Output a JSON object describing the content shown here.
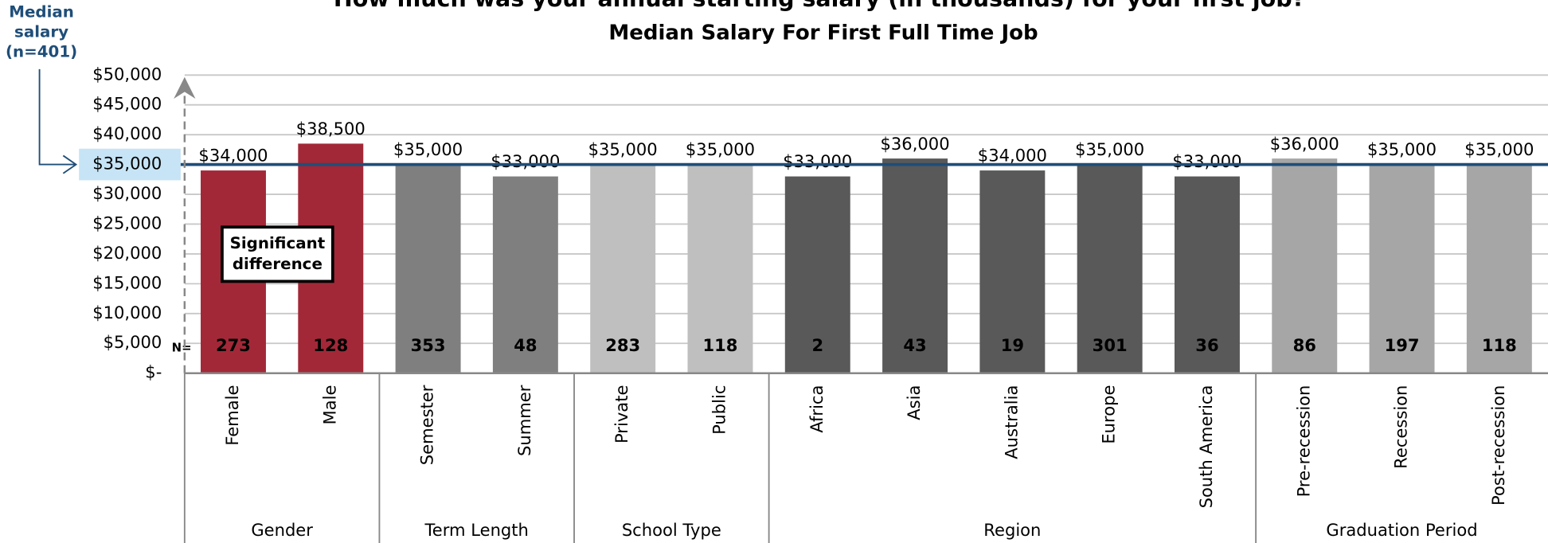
{
  "chart_data": {
    "type": "bar",
    "title": "How much was your annual starting salary (in thousands) for your first job?",
    "subtitle": "Median Salary For First Full Time Job",
    "categories": [
      "Female",
      "Male",
      "Semester",
      "Summer",
      "Private",
      "Public",
      "Africa",
      "Asia",
      "Australia",
      "Europe",
      "South America",
      "Pre-recession",
      "Recession",
      "Post-recession"
    ],
    "values": [
      34000,
      38500,
      35000,
      33000,
      35000,
      35000,
      33000,
      36000,
      34000,
      35000,
      33000,
      36000,
      35000,
      35000
    ],
    "value_labels": [
      "$34,000",
      "$38,500",
      "$35,000",
      "$33,000",
      "$35,000",
      "$35,000",
      "$33,000",
      "$36,000",
      "$34,000",
      "$35,000",
      "$33,000",
      "$36,000",
      "$35,000",
      "$35,000"
    ],
    "colors": [
      "#a22838",
      "#a22838",
      "#7f7f7f",
      "#7f7f7f",
      "#bfbfbf",
      "#bfbfbf",
      "#595959",
      "#595959",
      "#595959",
      "#595959",
      "#595959",
      "#a6a6a6",
      "#a6a6a6",
      "#a6a6a6"
    ],
    "n_label": "N=",
    "n": [
      273,
      128,
      353,
      48,
      283,
      118,
      2,
      43,
      19,
      301,
      36,
      86,
      197,
      118
    ],
    "groups": [
      {
        "name": "Gender",
        "size": 2
      },
      {
        "name": "Term Length",
        "size": 2
      },
      {
        "name": "School Type",
        "size": 2
      },
      {
        "name": "Region",
        "size": 5
      },
      {
        "name": "Graduation Period",
        "size": 3
      }
    ],
    "median": {
      "value": 35000,
      "label_lines": [
        "Median",
        "salary",
        "(n=401)"
      ],
      "color": "#1f4e79"
    },
    "annotation_lines": [
      "Significant",
      "difference"
    ],
    "ylim": [
      0,
      50000
    ],
    "yticks": [
      {
        "value": 0,
        "label": "$-"
      },
      {
        "value": 5000,
        "label": "$5,000"
      },
      {
        "value": 10000,
        "label": "$10,000"
      },
      {
        "value": 15000,
        "label": "$15,000"
      },
      {
        "value": 20000,
        "label": "$20,000"
      },
      {
        "value": 25000,
        "label": "$25,000"
      },
      {
        "value": 30000,
        "label": "$30,000"
      },
      {
        "value": 35000,
        "label": "$35,000"
      },
      {
        "value": 40000,
        "label": "$40,000"
      },
      {
        "value": 45000,
        "label": "$45,000"
      },
      {
        "value": 50000,
        "label": "$50,000"
      }
    ],
    "grid": true
  }
}
